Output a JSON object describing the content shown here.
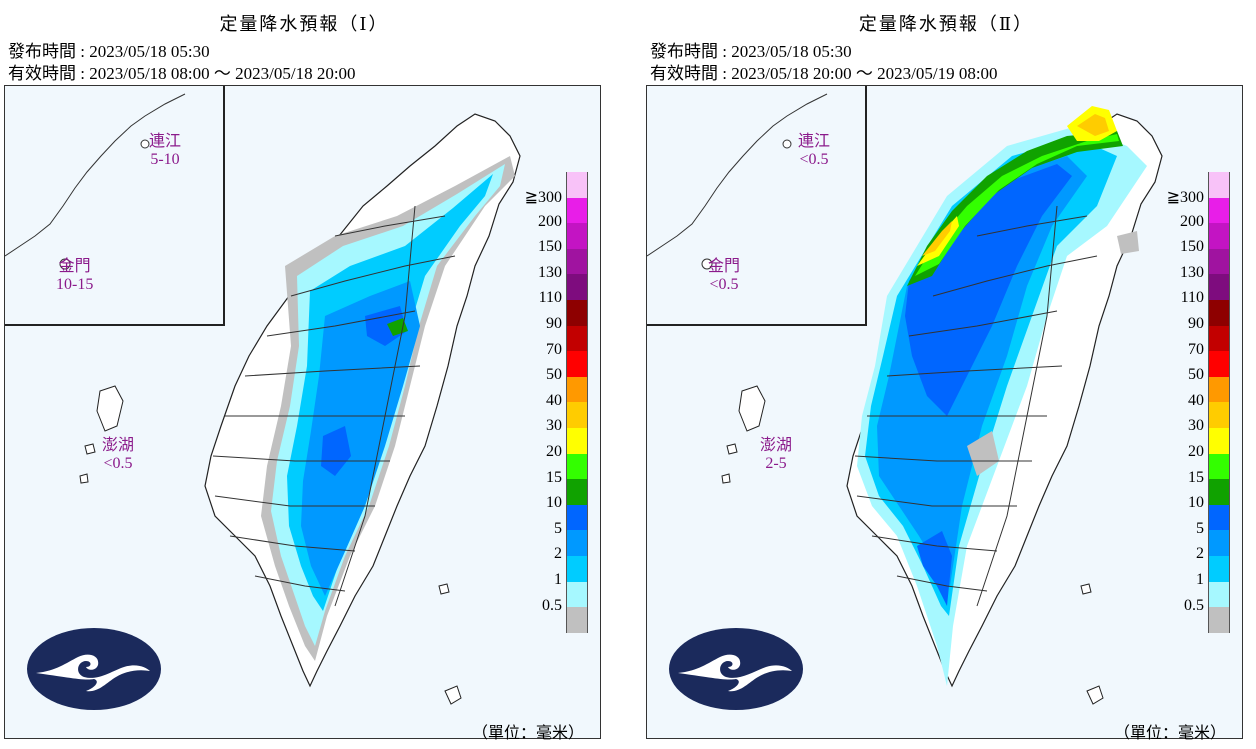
{
  "panels": [
    {
      "title": "定量降水預報（Ⅰ）",
      "issue_time": "發布時間 : 2023/05/18 05:30",
      "valid_time": "有效時間 : 2023/05/18 08:00 ～ 2023/05/18 20:00",
      "regions": {
        "matsu": {
          "name": "連江",
          "value": "5-10"
        },
        "kinmen": {
          "name": "金門",
          "value": "10-15"
        },
        "penghu": {
          "name": "澎湖",
          "value": "<0.5"
        }
      }
    },
    {
      "title": "定量降水預報（Ⅱ）",
      "issue_time": "發布時間 : 2023/05/18 05:30",
      "valid_time": "有效時間 : 2023/05/18 20:00 ～ 2023/05/19 08:00",
      "regions": {
        "matsu": {
          "name": "連江",
          "value": "<0.5"
        },
        "kinmen": {
          "name": "金門",
          "value": "<0.5"
        },
        "penghu": {
          "name": "澎湖",
          "value": "2-5"
        }
      }
    }
  ],
  "legend": {
    "ge_symbol": "≧",
    "levels": [
      {
        "label": "300",
        "color": "#f8c2f8"
      },
      {
        "label": "200",
        "color": "#e81ee8"
      },
      {
        "label": "150",
        "color": "#c314c3"
      },
      {
        "label": "130",
        "color": "#a013a0"
      },
      {
        "label": "110",
        "color": "#7e0c7e"
      },
      {
        "label": "90",
        "color": "#8e0000"
      },
      {
        "label": "70",
        "color": "#c20000"
      },
      {
        "label": "50",
        "color": "#ff0000"
      },
      {
        "label": "40",
        "color": "#ff9900"
      },
      {
        "label": "30",
        "color": "#ffcc00"
      },
      {
        "label": "20",
        "color": "#ffff00"
      },
      {
        "label": "15",
        "color": "#33ff00"
      },
      {
        "label": "10",
        "color": "#10a200"
      },
      {
        "label": "5",
        "color": "#0066ff"
      },
      {
        "label": "2",
        "color": "#0099ff"
      },
      {
        "label": "1",
        "color": "#00ccff"
      },
      {
        "label": "0.5",
        "color": "#a6f8ff"
      },
      {
        "label": "",
        "color": "#c0c0c0"
      }
    ]
  },
  "unit_label": "（單位：毫米）",
  "colors": {
    "sea": "#f1f8fd",
    "land": "#ffffff",
    "label": "#8b1a8b",
    "logo_bg": "#1b2a5c"
  }
}
